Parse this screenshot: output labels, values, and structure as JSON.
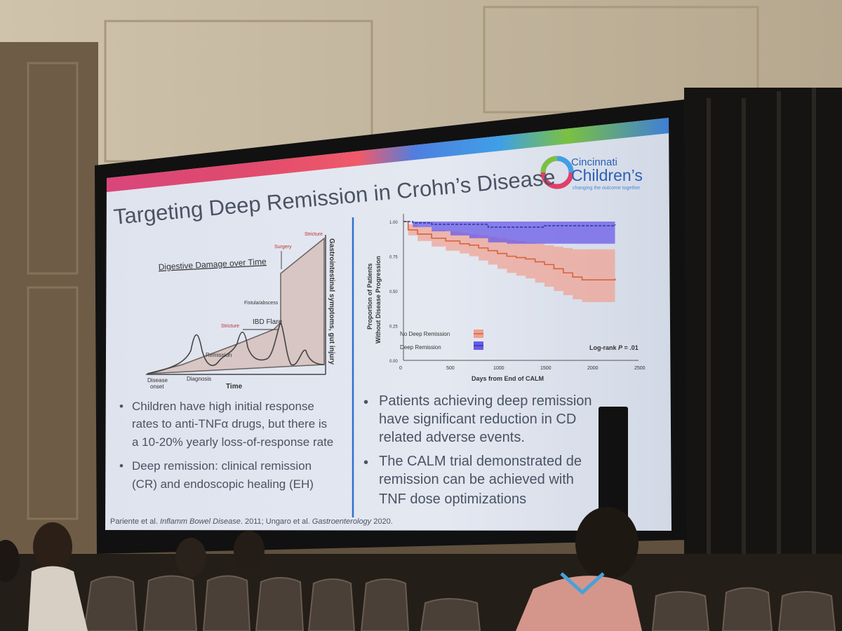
{
  "slide": {
    "title": "Targeting Deep Remission in Crohn’s Disease",
    "logo": {
      "line1": "Cincinnati",
      "line2": "Children’s",
      "tagline": "changing the outcome together"
    },
    "left_diagram": {
      "title": "Digestive Damage over Time",
      "y_axis_label": "Gastrointestinal symptoms, gut injury",
      "x_axis_label": "Time",
      "labels": {
        "stricture_top": "Stricture",
        "surgery": "Surgery",
        "fistula": "Fistula/abscess",
        "stricture_mid": "Stricture",
        "ibd_flare": "IBD Flare",
        "remission": "Remission",
        "disease_onset_1": "Disease",
        "disease_onset_2": "onset",
        "diagnosis": "Diagnosis"
      }
    },
    "right_chart_labels": {
      "y_label_1": "Proportion of Patients",
      "y_label_2": "Without Disease Progression",
      "x_label": "Days from End of CALM",
      "legend_no": "No Deep Remission",
      "legend_deep": "Deep Remission",
      "logrank_prefix": "Log-rank ",
      "logrank_p": "P",
      "logrank_value": " = .01"
    },
    "left_bullets": [
      {
        "l1": "Children have high initial response",
        "l2": "rates to anti-TNFα drugs, but there is",
        "l3": "a 10-20% yearly loss-of-response rate"
      },
      {
        "l1": "Deep remission: clinical remission",
        "l2": "(CR) and endoscopic healing (EH)"
      }
    ],
    "right_bullets": [
      {
        "l1": "Patients achieving deep remission",
        "l2": "have significant reduction in CD",
        "l3": "related adverse events."
      },
      {
        "l1": "The CALM trial demonstrated de",
        "l2": "remission can be achieved with",
        "l3": "TNF dose optimizations"
      }
    ],
    "citation": {
      "a": "Pariente et al. ",
      "b": "Inflamm Bowel Disease",
      "c": ". 2011; Ungaro et al. ",
      "d": "Gastroenterology",
      "e": " 2020."
    }
  },
  "chart_data": {
    "type": "line",
    "xlabel": "Days from End of CALM",
    "ylabel": "Proportion of Patients Without Disease Progression",
    "x_ticks": [
      0,
      500,
      1000,
      1500,
      2000,
      2500
    ],
    "y_ticks": [
      "0.00",
      "0.25",
      "0.50",
      "0.75",
      "1.00"
    ],
    "xlim": [
      0,
      2500
    ],
    "ylim": [
      0,
      1.0
    ],
    "legend_placement": "bottom-left",
    "series": [
      {
        "name": "No Deep Remission",
        "color": "#d9623a",
        "band_color": "#f0a090",
        "x": [
          0,
          50,
          150,
          300,
          450,
          600,
          700,
          800,
          900,
          1000,
          1100,
          1200,
          1300,
          1400,
          1500,
          1600,
          1700,
          1800,
          1900,
          2000,
          2100,
          2200,
          2250
        ],
        "y": [
          1.0,
          0.94,
          0.91,
          0.88,
          0.86,
          0.84,
          0.83,
          0.81,
          0.79,
          0.77,
          0.75,
          0.74,
          0.73,
          0.71,
          0.69,
          0.66,
          0.63,
          0.6,
          0.58,
          0.58,
          0.58,
          0.58,
          0.59
        ],
        "lower": [
          1.0,
          0.9,
          0.86,
          0.82,
          0.79,
          0.77,
          0.75,
          0.72,
          0.69,
          0.66,
          0.63,
          0.61,
          0.59,
          0.56,
          0.53,
          0.5,
          0.47,
          0.44,
          0.42,
          0.42,
          0.42,
          0.42,
          0.42
        ],
        "upper": [
          1.0,
          0.98,
          0.96,
          0.94,
          0.93,
          0.92,
          0.91,
          0.9,
          0.89,
          0.88,
          0.87,
          0.86,
          0.85,
          0.84,
          0.83,
          0.82,
          0.81,
          0.8,
          0.8,
          0.8,
          0.8,
          0.8,
          0.8
        ]
      },
      {
        "name": "Deep Remission",
        "color": "#2e3fa0",
        "band_color": "#6a5be8",
        "x": [
          0,
          100,
          300,
          500,
          700,
          900,
          1100,
          1300,
          1500,
          1700,
          1900,
          2100,
          2200,
          2250
        ],
        "y": [
          1.0,
          0.99,
          0.98,
          0.98,
          0.98,
          0.96,
          0.96,
          0.96,
          0.97,
          0.97,
          0.97,
          0.97,
          0.97,
          0.98
        ],
        "lower": [
          1.0,
          0.96,
          0.93,
          0.9,
          0.88,
          0.85,
          0.84,
          0.84,
          0.84,
          0.84,
          0.84,
          0.84,
          0.84,
          0.84
        ],
        "upper": [
          1.0,
          1.02,
          1.03,
          1.03,
          1.03,
          1.03,
          1.03,
          1.03,
          1.03,
          1.03,
          1.03,
          1.03,
          1.03,
          1.03
        ]
      }
    ]
  }
}
